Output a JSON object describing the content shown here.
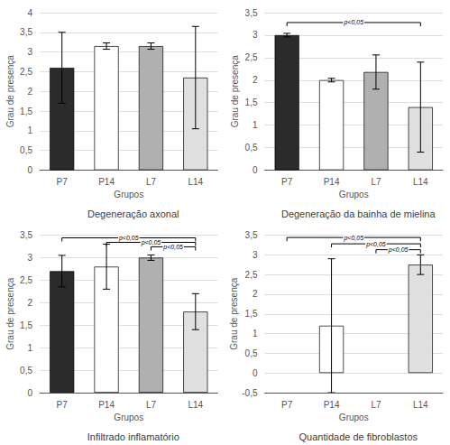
{
  "chart_data": [
    {
      "type": "bar",
      "title": "Degeneração axonal",
      "xlabel": "Grupos",
      "ylabel": "Grau de presença",
      "categories": [
        "P7",
        "P14",
        "L7",
        "L14"
      ],
      "values": [
        2.6,
        3.15,
        3.15,
        2.35
      ],
      "errors": [
        0.9,
        0.08,
        0.08,
        1.3
      ],
      "colors": [
        "#2b2b2b",
        "#ffffff",
        "#b0b0b0",
        "#e0e0e0"
      ],
      "ylim": [
        0,
        4.0
      ],
      "yticks": [
        0,
        {
          "value": 0.5,
          "label": "0,5"
        },
        1,
        {
          "value": 1.5,
          "label": "1,5"
        },
        2,
        {
          "value": 2.5,
          "label": "2,5"
        },
        3,
        {
          "value": 3.5,
          "label": "3,5"
        },
        4
      ],
      "annotations": [],
      "grid": true
    },
    {
      "type": "bar",
      "title": "Degeneração da bainha de mielina",
      "xlabel": "Grupos",
      "ylabel": "Grau de presença",
      "categories": [
        "P7",
        "P14",
        "L7",
        "L14"
      ],
      "values": [
        3.0,
        2.0,
        2.18,
        1.4
      ],
      "errors": [
        0.04,
        0.04,
        0.38,
        1.0
      ],
      "colors": [
        "#2b2b2b",
        "#ffffff",
        "#b0b0b0",
        "#e0e0e0"
      ],
      "ylim": [
        0,
        3.5
      ],
      "yticks": [
        0,
        {
          "value": 0.5,
          "label": "0,5"
        },
        1,
        {
          "value": 1.5,
          "label": "1,5"
        },
        2,
        {
          "value": 2.5,
          "label": "2,5"
        },
        3,
        {
          "value": 3.5,
          "label": "3,5"
        }
      ],
      "annotations": [
        {
          "text": "p<0,05",
          "x1": "P7",
          "x2": "L14",
          "y": 3.28
        }
      ],
      "grid": true
    },
    {
      "type": "bar",
      "title": "Infiltrado inflamatório",
      "xlabel": "Grupos",
      "ylabel": "Grau de presença",
      "categories": [
        "P7",
        "P14",
        "L7",
        "L14"
      ],
      "values": [
        2.7,
        2.8,
        3.0,
        1.8
      ],
      "errors": [
        0.35,
        0.5,
        0.06,
        0.4
      ],
      "colors": [
        "#2b2b2b",
        "#ffffff",
        "#b0b0b0",
        "#e0e0e0"
      ],
      "ylim": [
        0,
        3.5
      ],
      "yticks": [
        0,
        {
          "value": 0.5,
          "label": "0,5"
        },
        1,
        {
          "value": 1.5,
          "label": "1,5"
        },
        2,
        {
          "value": 2.5,
          "label": "2,5"
        },
        3,
        {
          "value": 3.5,
          "label": "3,5"
        }
      ],
      "annotations": [
        {
          "text": "p<0,05",
          "x1": "P7",
          "x2": "L14",
          "y": 3.44
        },
        {
          "text": "p<0,05",
          "x1": "P14",
          "x2": "L14",
          "y": 3.34
        },
        {
          "text": "p<0,05",
          "x1": "L7",
          "x2": "L14",
          "y": 3.24
        }
      ],
      "grid": true
    },
    {
      "type": "bar",
      "title": "Quantidade de fibroblastos",
      "xlabel": "Grupos",
      "ylabel": "Grau de presença",
      "categories": [
        "P7",
        "P14",
        "L7",
        "L14"
      ],
      "values": [
        0.0,
        1.2,
        0.0,
        2.75
      ],
      "errors": [
        0.0,
        1.7,
        0.0,
        0.25
      ],
      "colors": [
        "#2b2b2b",
        "#ffffff",
        "#b0b0b0",
        "#e0e0e0"
      ],
      "ylim": [
        -0.5,
        3.5
      ],
      "yticks": [
        {
          "value": -0.5,
          "label": "-0,5"
        },
        0,
        {
          "value": 0.5,
          "label": "0,5"
        },
        1,
        {
          "value": 1.5,
          "label": "1,5"
        },
        2,
        {
          "value": 2.5,
          "label": "2,5"
        },
        3,
        {
          "value": 3.5,
          "label": "3,5"
        }
      ],
      "annotations": [
        {
          "text": "p<0,05",
          "x1": "P7",
          "x2": "L14",
          "y": 3.44
        },
        {
          "text": "p<0,05",
          "x1": "P14",
          "x2": "L14",
          "y": 3.28
        },
        {
          "text": "p<0,05",
          "x1": "L7",
          "x2": "L14",
          "y": 3.13
        }
      ],
      "grid": true
    }
  ]
}
